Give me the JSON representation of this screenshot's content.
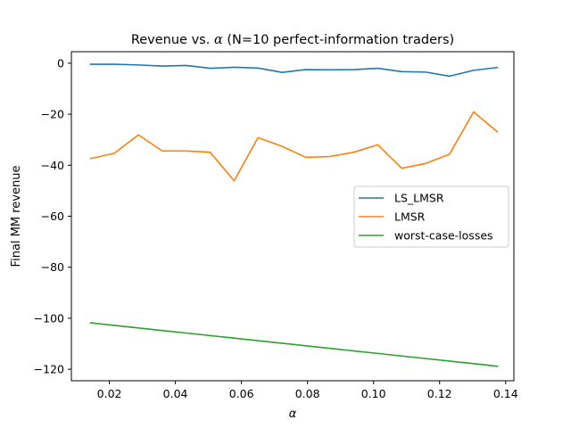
{
  "chart_data": {
    "type": "line",
    "title_prefix": "Revenue vs. ",
    "title_symbol": "α",
    "title_suffix": " (N=10 perfect-information traders)",
    "xlabel": "α",
    "ylabel": "Final MM revenue",
    "xlim": [
      0.0085,
      0.1425
    ],
    "ylim": [
      -124.5,
      4.5
    ],
    "xticks": [
      0.02,
      0.04,
      0.06,
      0.08,
      0.1,
      0.12,
      0.14
    ],
    "xtick_labels": [
      "0.02",
      "0.04",
      "0.06",
      "0.08",
      "0.10",
      "0.12",
      "0.14"
    ],
    "yticks": [
      0,
      -20,
      -40,
      -60,
      -80,
      -100,
      -120
    ],
    "ytick_labels": [
      "0",
      "−20",
      "−40",
      "−60",
      "−80",
      "−100",
      "−120"
    ],
    "legend_position": "center-right",
    "grid": false,
    "x": [
      0.0143,
      0.0215,
      0.0288,
      0.036,
      0.0433,
      0.0505,
      0.0578,
      0.065,
      0.0723,
      0.0795,
      0.0868,
      0.094,
      0.1013,
      0.1085,
      0.1158,
      0.123,
      0.1303,
      0.1375
    ],
    "series": [
      {
        "name": "LS_LMSR",
        "color": "#1f77b4",
        "values": [
          -0.4,
          -0.4,
          -0.7,
          -1.1,
          -0.9,
          -2.0,
          -1.6,
          -1.9,
          -3.6,
          -2.5,
          -2.6,
          -2.5,
          -2.0,
          -3.3,
          -3.5,
          -5.1,
          -2.8,
          -1.7
        ]
      },
      {
        "name": "LMSR",
        "color": "#ff7f0e",
        "values": [
          -37.4,
          -35.3,
          -28.1,
          -34.4,
          -34.4,
          -34.9,
          -46.1,
          -29.2,
          -32.6,
          -36.9,
          -36.6,
          -34.9,
          -32.0,
          -41.2,
          -39.3,
          -35.7,
          -19.1,
          -26.9
        ]
      },
      {
        "name": "worst-case-losses",
        "color": "#2ca02c",
        "values": [
          -101.8,
          -102.8,
          -103.8,
          -104.8,
          -105.8,
          -106.8,
          -107.8,
          -108.8,
          -109.8,
          -110.8,
          -111.8,
          -112.8,
          -113.8,
          -114.8,
          -115.8,
          -116.8,
          -117.8,
          -118.8
        ]
      }
    ]
  }
}
